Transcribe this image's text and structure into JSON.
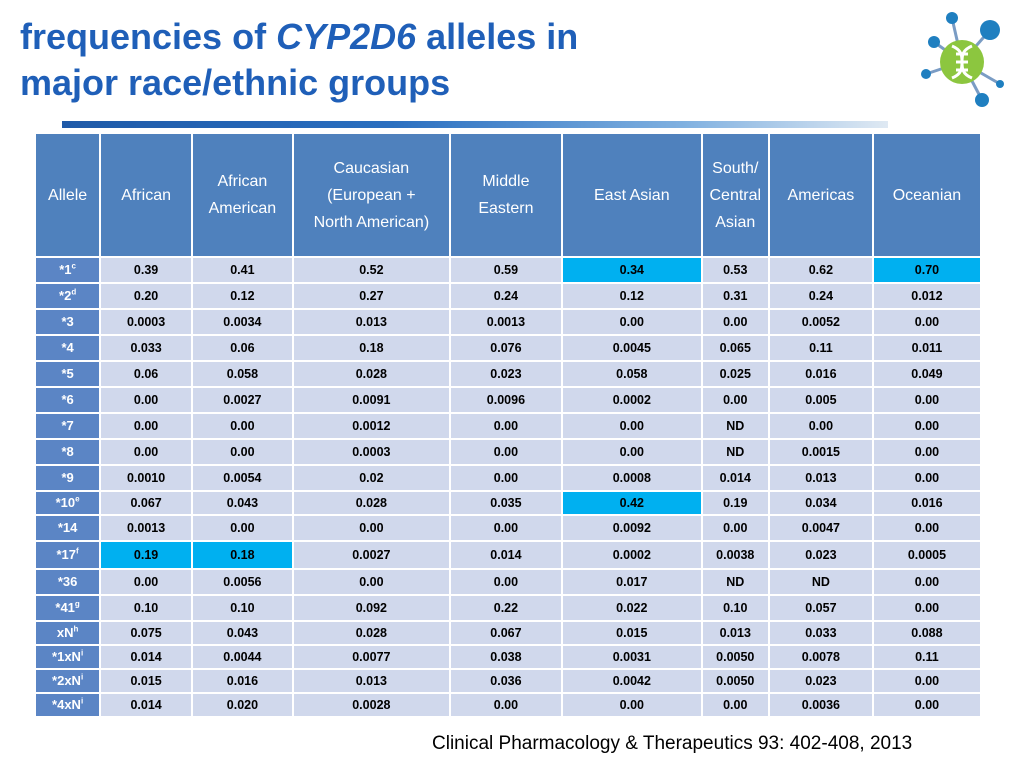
{
  "title": {
    "prefix": "frequencies of",
    "gene": "CYP2D6",
    "suffix": "alleles in",
    "line2": "major race/ethnic groups"
  },
  "colors": {
    "title": "#1f5fb8",
    "header_bg": "#4f81bd",
    "cell_bg": "#d0d8ec",
    "highlight": "#00b0f0",
    "logo_green": "#8cc63f",
    "logo_blue": "#1f7fc0"
  },
  "logo": {
    "icon": "dna-network-logo"
  },
  "table": {
    "headers": [
      "Allele",
      "African",
      "African\nAmerican",
      "Caucasian\n(European +\nNorth American)",
      "Middle\nEastern",
      "East Asian",
      "South/\nCentral\nAsian",
      "Americas",
      "Oceanian"
    ],
    "rows": [
      {
        "allele": "*1",
        "sup": "c",
        "values": [
          "0.39",
          "0.41",
          "0.52",
          "0.59",
          "0.34",
          "0.53",
          "0.62",
          "0.70"
        ],
        "highlight": [
          4,
          7
        ]
      },
      {
        "allele": "*2",
        "sup": "d",
        "values": [
          "0.20",
          "0.12",
          "0.27",
          "0.24",
          "0.12",
          "0.31",
          "0.24",
          "0.012"
        ],
        "highlight": []
      },
      {
        "allele": "*3",
        "sup": "",
        "values": [
          "0.0003",
          "0.0034",
          "0.013",
          "0.0013",
          "0.00",
          "0.00",
          "0.0052",
          "0.00"
        ],
        "highlight": []
      },
      {
        "allele": "*4",
        "sup": "",
        "values": [
          "0.033",
          "0.06",
          "0.18",
          "0.076",
          "0.0045",
          "0.065",
          "0.11",
          "0.011"
        ],
        "highlight": []
      },
      {
        "allele": "*5",
        "sup": "",
        "values": [
          "0.06",
          "0.058",
          "0.028",
          "0.023",
          "0.058",
          "0.025",
          "0.016",
          "0.049"
        ],
        "highlight": []
      },
      {
        "allele": "*6",
        "sup": "",
        "values": [
          "0.00",
          "0.0027",
          "0.0091",
          "0.0096",
          "0.0002",
          "0.00",
          "0.005",
          "0.00"
        ],
        "highlight": []
      },
      {
        "allele": "*7",
        "sup": "",
        "values": [
          "0.00",
          "0.00",
          "0.0012",
          "0.00",
          "0.00",
          "ND",
          "0.00",
          "0.00"
        ],
        "highlight": []
      },
      {
        "allele": "*8",
        "sup": "",
        "values": [
          "0.00",
          "0.00",
          "0.0003",
          "0.00",
          "0.00",
          "ND",
          "0.0015",
          "0.00"
        ],
        "highlight": []
      },
      {
        "allele": "*9",
        "sup": "",
        "values": [
          "0.0010",
          "0.0054",
          "0.02",
          "0.00",
          "0.0008",
          "0.014",
          "0.013",
          "0.00"
        ],
        "highlight": []
      },
      {
        "allele": "*10",
        "sup": "e",
        "values": [
          "0.067",
          "0.043",
          "0.028",
          "0.035",
          "0.42",
          "0.19",
          "0.034",
          "0.016"
        ],
        "highlight": [
          4
        ]
      },
      {
        "allele": "*14",
        "sup": "",
        "values": [
          "0.0013",
          "0.00",
          "0.00",
          "0.00",
          "0.0092",
          "0.00",
          "0.0047",
          "0.00"
        ],
        "highlight": []
      },
      {
        "allele": "*17",
        "sup": "f",
        "values": [
          "0.19",
          "0.18",
          "0.0027",
          "0.014",
          "0.0002",
          "0.0038",
          "0.023",
          "0.0005"
        ],
        "highlight": [
          0,
          1
        ]
      },
      {
        "allele": "*36",
        "sup": "",
        "values": [
          "0.00",
          "0.0056",
          "0.00",
          "0.00",
          "0.017",
          "ND",
          "ND",
          "0.00"
        ],
        "highlight": []
      },
      {
        "allele": "*41",
        "sup": "g",
        "values": [
          "0.10",
          "0.10",
          "0.092",
          "0.22",
          "0.022",
          "0.10",
          "0.057",
          "0.00"
        ],
        "highlight": []
      },
      {
        "allele": "xN",
        "sup": "h",
        "values": [
          "0.075",
          "0.043",
          "0.028",
          "0.067",
          "0.015",
          "0.013",
          "0.033",
          "0.088"
        ],
        "highlight": []
      },
      {
        "allele": "*1xN",
        "sup": "i",
        "values": [
          "0.014",
          "0.0044",
          "0.0077",
          "0.038",
          "0.0031",
          "0.0050",
          "0.0078",
          "0.11"
        ],
        "highlight": []
      },
      {
        "allele": "*2xN",
        "sup": "i",
        "values": [
          "0.015",
          "0.016",
          "0.013",
          "0.036",
          "0.0042",
          "0.0050",
          "0.023",
          "0.00"
        ],
        "highlight": []
      },
      {
        "allele": "*4xN",
        "sup": "i",
        "values": [
          "0.014",
          "0.020",
          "0.0028",
          "0.00",
          "0.00",
          "0.00",
          "0.0036",
          "0.00"
        ],
        "highlight": []
      }
    ]
  },
  "citation": "Clinical Pharmacology & Therapeutics 93: 402-408, 2013"
}
